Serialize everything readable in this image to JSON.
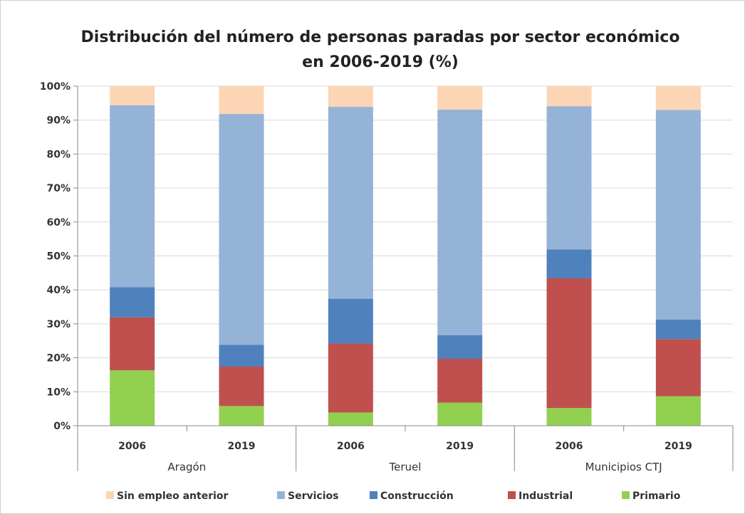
{
  "chart_data": {
    "type": "bar",
    "stacked": true,
    "percent": true,
    "title_line1": "Distribución del número de personas paradas por sector económico",
    "title_line2": "en 2006-2019 (%)",
    "categories": [
      "2006",
      "2019",
      "2006",
      "2019",
      "2006",
      "2019"
    ],
    "groups": [
      {
        "label": "Aragón",
        "categories": [
          "2006",
          "2019"
        ]
      },
      {
        "label": "Teruel",
        "categories": [
          "2006",
          "2019"
        ]
      },
      {
        "label": "Municipios CTJ",
        "categories": [
          "2006",
          "2019"
        ]
      }
    ],
    "yticks": [
      "0%",
      "10%",
      "20%",
      "30%",
      "40%",
      "50%",
      "60%",
      "70%",
      "80%",
      "90%",
      "100%"
    ],
    "ylim": [
      0,
      100
    ],
    "grid": true,
    "legend_position": "bottom",
    "series": [
      {
        "name": "Primario",
        "color": "#92d050",
        "values": [
          16.3,
          5.8,
          3.9,
          6.8,
          5.2,
          8.7
        ]
      },
      {
        "name": "Industrial",
        "color": "#c0504d",
        "values": [
          15.6,
          11.6,
          20.3,
          12.9,
          38.2,
          16.8
        ]
      },
      {
        "name": "Construcción",
        "color": "#4f81bd",
        "values": [
          8.9,
          6.4,
          13.2,
          7.0,
          8.5,
          5.8
        ]
      },
      {
        "name": "Servicios",
        "color": "#95b3d7",
        "values": [
          53.6,
          68.0,
          56.5,
          66.4,
          42.2,
          61.7
        ]
      },
      {
        "name": "Sin empleo anterior",
        "color": "#fcd5b4",
        "values": [
          5.6,
          8.2,
          6.1,
          6.9,
          5.9,
          7.0
        ]
      }
    ],
    "legend_order": [
      "Sin empleo anterior",
      "Servicios",
      "Construcción",
      "Industrial",
      "Primario"
    ]
  }
}
